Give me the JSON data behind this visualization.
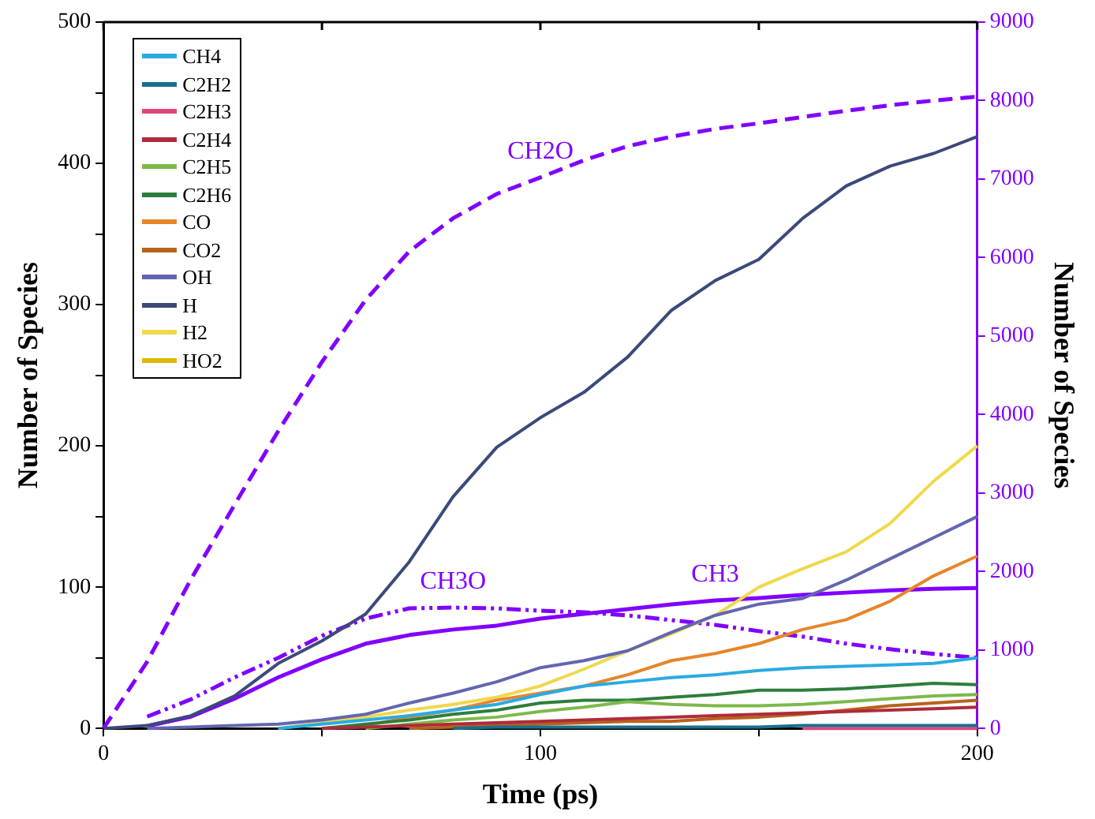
{
  "chart_data": {
    "type": "line",
    "xlabel": "Time (ps)",
    "ylabel": "Number of Species",
    "y2label": "Number of Species",
    "x": [
      0,
      10,
      20,
      30,
      40,
      50,
      60,
      70,
      80,
      90,
      100,
      110,
      120,
      130,
      140,
      150,
      160,
      170,
      180,
      190,
      200
    ],
    "xlim": [
      0,
      200
    ],
    "xticks": [
      0,
      {
        "value": 50,
        "label": null
      },
      100,
      {
        "value": 150,
        "label": null
      },
      200
    ],
    "ylim": [
      0,
      500
    ],
    "yticks": [
      0,
      {
        "value": 50,
        "label": null
      },
      100,
      {
        "value": 150,
        "label": null
      },
      200,
      {
        "value": 250,
        "label": null
      },
      300,
      {
        "value": 350,
        "label": null
      },
      400,
      {
        "value": 450,
        "label": null
      },
      500
    ],
    "y2lim": [
      0,
      9000
    ],
    "y2ticks": [
      0,
      1000,
      2000,
      3000,
      4000,
      5000,
      6000,
      7000,
      8000,
      9000
    ],
    "grid": false,
    "legend": "top left",
    "marker": "none",
    "series": [
      {
        "name": "CH4",
        "color": "#29abe2",
        "values": [
          null,
          null,
          null,
          null,
          0,
          3,
          6,
          9,
          13,
          17,
          24,
          30,
          33,
          36,
          38,
          41,
          43,
          44,
          45,
          46,
          50
        ]
      },
      {
        "name": "C2H2",
        "color": "#1a6e8c",
        "values": [
          null,
          null,
          null,
          null,
          null,
          null,
          null,
          null,
          0,
          1,
          1,
          1,
          1,
          1,
          1,
          1,
          2,
          2,
          2,
          2,
          2
        ]
      },
      {
        "name": "C2H3",
        "color": "#e0457b",
        "values": [
          null,
          null,
          null,
          null,
          null,
          null,
          null,
          null,
          null,
          null,
          null,
          null,
          null,
          null,
          null,
          null,
          0,
          0,
          0,
          0,
          0
        ]
      },
      {
        "name": "C2H4",
        "color": "#b02a3a",
        "values": [
          null,
          null,
          null,
          null,
          null,
          0,
          1,
          2,
          3,
          4,
          5,
          6,
          7,
          8,
          9,
          10,
          11,
          12,
          13,
          14,
          15
        ]
      },
      {
        "name": "C2H5",
        "color": "#7cb94a",
        "values": [
          null,
          null,
          null,
          null,
          null,
          null,
          0,
          3,
          6,
          8,
          12,
          15,
          19,
          17,
          16,
          16,
          17,
          19,
          21,
          23,
          24
        ]
      },
      {
        "name": "C2H6",
        "color": "#2e7d3c",
        "values": [
          null,
          null,
          null,
          null,
          null,
          0,
          3,
          6,
          10,
          13,
          18,
          20,
          20,
          22,
          24,
          27,
          27,
          28,
          30,
          32,
          31
        ]
      },
      {
        "name": "CO",
        "color": "#e8852a",
        "values": [
          null,
          null,
          null,
          null,
          null,
          0,
          2,
          8,
          13,
          20,
          25,
          30,
          38,
          48,
          53,
          60,
          70,
          77,
          90,
          108,
          122
        ]
      },
      {
        "name": "CO2",
        "color": "#b8621b",
        "values": [
          null,
          null,
          null,
          null,
          null,
          null,
          null,
          0,
          1,
          2,
          3,
          4,
          5,
          5,
          7,
          8,
          10,
          13,
          16,
          18,
          20
        ]
      },
      {
        "name": "OH",
        "color": "#6266b0",
        "values": [
          null,
          0,
          1,
          2,
          3,
          6,
          10,
          18,
          25,
          33,
          43,
          48,
          55,
          68,
          80,
          88,
          92,
          105,
          120,
          135,
          150
        ]
      },
      {
        "name": "H",
        "color": "#3b4a7a",
        "values": [
          0,
          2,
          9,
          23,
          46,
          62,
          81,
          118,
          164,
          199,
          220,
          238,
          263,
          296,
          317,
          332,
          361,
          384,
          398,
          407,
          419
        ]
      },
      {
        "name": "H2",
        "color": "#f0d84a",
        "values": [
          null,
          null,
          null,
          null,
          0,
          4,
          8,
          13,
          17,
          22,
          30,
          42,
          55,
          67,
          80,
          100,
          113,
          125,
          145,
          175,
          200
        ]
      },
      {
        "name": "HO2",
        "color": "#e0b800",
        "values": [
          null,
          null,
          null,
          null,
          null,
          null,
          null,
          null,
          null,
          null,
          null,
          null,
          null,
          null,
          null,
          null,
          null,
          null,
          null,
          null,
          null
        ]
      },
      {
        "name": "CH2O",
        "color": "#8000ff",
        "axis": "y2",
        "line_style": "dashed",
        "values": [
          0,
          850,
          1900,
          2850,
          3790,
          4670,
          5460,
          6080,
          6500,
          6810,
          7020,
          7240,
          7420,
          7540,
          7640,
          7710,
          7790,
          7870,
          7940,
          8000,
          8050
        ]
      },
      {
        "name": "CH3",
        "color": "#8000ff",
        "axis": "y2",
        "line_style": "solid",
        "values": [
          null,
          30,
          150,
          380,
          650,
          880,
          1080,
          1190,
          1260,
          1310,
          1400,
          1460,
          1520,
          1580,
          1630,
          1660,
          1700,
          1730,
          1760,
          1780,
          1790
        ]
      },
      {
        "name": "CH3O",
        "color": "#8000ff",
        "axis": "y2",
        "line_style": "dotted",
        "values": [
          null,
          150,
          370,
          650,
          900,
          1180,
          1400,
          1530,
          1540,
          1530,
          1500,
          1480,
          1440,
          1380,
          1320,
          1240,
          1170,
          1080,
          1010,
          950,
          900
        ]
      }
    ]
  }
}
